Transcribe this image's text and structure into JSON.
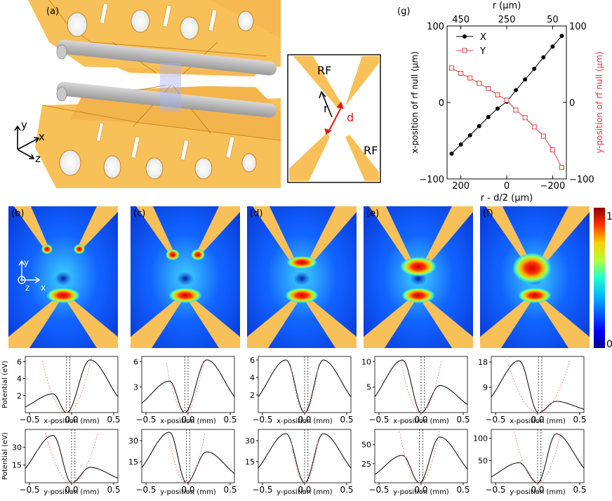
{
  "panel_labels": [
    "(a)",
    "(b)",
    "(c)",
    "(d)",
    "(e)",
    "(f)",
    "(g)"
  ],
  "inset": {
    "rf_top": "RF",
    "rf_bottom": "RF",
    "r_label": "r",
    "d_label": "d"
  },
  "axes_3d": {
    "y": "y",
    "x": "x",
    "z": "z"
  },
  "map_axes": {
    "y": "y",
    "x": "x",
    "z": "z"
  },
  "colorbar": {
    "max_label": "1",
    "min_label": "0"
  },
  "colors": {
    "electrode": "#f8c058",
    "x_series": "#000000",
    "y_series": "#e03c3c",
    "fit": "#ff7070"
  },
  "chart_data": [
    {
      "type": "scatter",
      "panel": "(g)",
      "xlabel": "r - d/2 (μm)",
      "top_xlabel": "r (μm)",
      "ylabel": "x-position of rf null (μm)",
      "ylabel_right": "y-position of rf null (μm)",
      "xlim": [
        260,
        -260
      ],
      "ylim": [
        -100,
        100
      ],
      "x_ticks": [
        "200",
        "0",
        "−200"
      ],
      "top_ticks": [
        "450",
        "250",
        "50"
      ],
      "y_ticks": [
        "100",
        "0",
        "−100"
      ],
      "legend": [
        "X",
        "Y"
      ],
      "legend_position": "top-left",
      "x": [
        240,
        200,
        160,
        120,
        80,
        40,
        0,
        -40,
        -80,
        -120,
        -160,
        -200,
        -240
      ],
      "series": [
        {
          "name": "X",
          "values": [
            -67,
            -55,
            -43,
            -31,
            -19,
            -8,
            1,
            16,
            30,
            44,
            59,
            73,
            87
          ]
        },
        {
          "name": "Y",
          "values": [
            45,
            38,
            32,
            25,
            18,
            10,
            3,
            -10,
            -20,
            -32,
            -44,
            -62,
            -85
          ]
        }
      ]
    },
    {
      "type": "heatmap",
      "panels": [
        "(b)",
        "(c)",
        "(d)",
        "(e)",
        "(f)"
      ],
      "colorscale_range": [
        0,
        1
      ]
    },
    {
      "type": "line",
      "row": "x-profiles",
      "xlabel": "x-position (mm)",
      "ylabel": "Potential (eV)",
      "xlim": [
        -0.55,
        0.55
      ],
      "x_ticks": [
        "−0.5",
        "0.0",
        "0.5"
      ],
      "panels": [
        {
          "yticks": [
            "2",
            "4",
            "6"
          ],
          "ylim": [
            0,
            6.6
          ],
          "peak_left": 2.2,
          "peak_right": 6.2
        },
        {
          "yticks": [
            "3",
            "6"
          ],
          "ylim": [
            0,
            6.6
          ],
          "peak_left": 3.7,
          "peak_right": 6.2
        },
        {
          "yticks": [
            "2",
            "4",
            "6"
          ],
          "ylim": [
            0,
            6.4
          ],
          "peak_left": 6.0,
          "peak_right": 6.0
        },
        {
          "yticks": [
            "5",
            "10"
          ],
          "ylim": [
            0,
            11
          ],
          "peak_left": 10.3,
          "peak_right": 5.3
        },
        {
          "yticks": [
            "9",
            "18"
          ],
          "ylim": [
            0,
            20
          ],
          "peak_left": 18.5,
          "peak_right": 4.0
        }
      ]
    },
    {
      "type": "line",
      "row": "y-profiles",
      "xlabel": "y-position (mm)",
      "ylabel": "Potential (eV)",
      "xlim": [
        -0.55,
        0.55
      ],
      "x_ticks": [
        "−0.5",
        "0.0",
        "0.5"
      ],
      "panels": [
        {
          "yticks": [
            "15",
            "30"
          ],
          "ylim": [
            0,
            45
          ],
          "peak_left": 40,
          "peak_right": 13
        },
        {
          "yticks": [
            "15",
            "30"
          ],
          "ylim": [
            0,
            38
          ],
          "peak_left": 36,
          "peak_right": 22
        },
        {
          "yticks": [
            "15",
            "30"
          ],
          "ylim": [
            0,
            38
          ],
          "peak_left": 35,
          "peak_right": 35
        },
        {
          "yticks": [
            "25",
            "50"
          ],
          "ylim": [
            0,
            70
          ],
          "peak_left": 36,
          "peak_right": 60
        },
        {
          "yticks": [
            "50",
            "100"
          ],
          "ylim": [
            0,
            120
          ],
          "peak_left": 45,
          "peak_right": 110
        }
      ]
    }
  ]
}
